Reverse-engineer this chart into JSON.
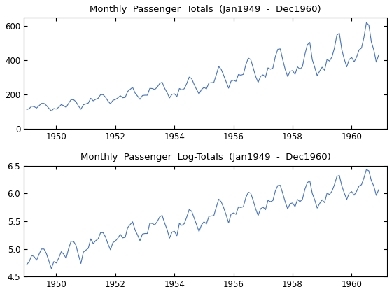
{
  "title1": "Monthly  Passenger  Totals  (Jan1949  -  Dec1960)",
  "title2": "Monthly  Passenger  Log-Totals  (Jan1949  -  Dec1960)",
  "passengers": [
    112,
    118,
    132,
    129,
    121,
    135,
    148,
    148,
    136,
    119,
    104,
    118,
    115,
    126,
    141,
    135,
    125,
    149,
    170,
    170,
    158,
    133,
    114,
    140,
    145,
    150,
    178,
    163,
    172,
    178,
    199,
    199,
    184,
    162,
    146,
    166,
    171,
    180,
    193,
    181,
    183,
    218,
    230,
    242,
    209,
    191,
    172,
    194,
    196,
    196,
    236,
    235,
    229,
    243,
    264,
    272,
    237,
    211,
    180,
    201,
    204,
    188,
    235,
    227,
    234,
    264,
    302,
    293,
    259,
    229,
    203,
    229,
    242,
    233,
    267,
    269,
    270,
    315,
    364,
    347,
    312,
    274,
    237,
    278,
    284,
    277,
    317,
    313,
    318,
    374,
    413,
    405,
    355,
    306,
    271,
    306,
    315,
    301,
    356,
    348,
    355,
    422,
    465,
    467,
    404,
    347,
    305,
    336,
    340,
    318,
    362,
    348,
    363,
    435,
    491,
    505,
    404,
    359,
    310,
    337,
    360,
    342,
    406,
    396,
    420,
    472,
    548,
    559,
    463,
    407,
    362,
    405,
    417,
    391,
    419,
    461,
    472,
    535,
    622,
    606,
    508,
    461,
    390,
    432
  ],
  "line_color": "#4472c4",
  "line_width": 0.8,
  "start_year": 1949,
  "ylim1": [
    0,
    650
  ],
  "ylim2": [
    4.5,
    6.5
  ],
  "yticks1": [
    0,
    200,
    400,
    600
  ],
  "yticks2": [
    4.5,
    5.0,
    5.5,
    6.0,
    6.5
  ],
  "xticks": [
    1950,
    1952,
    1954,
    1956,
    1958,
    1960
  ],
  "xlim": [
    1948.9,
    1961.2
  ],
  "background_color": "#ffffff",
  "title_fontsize": 9.5,
  "tick_fontsize": 8.5
}
